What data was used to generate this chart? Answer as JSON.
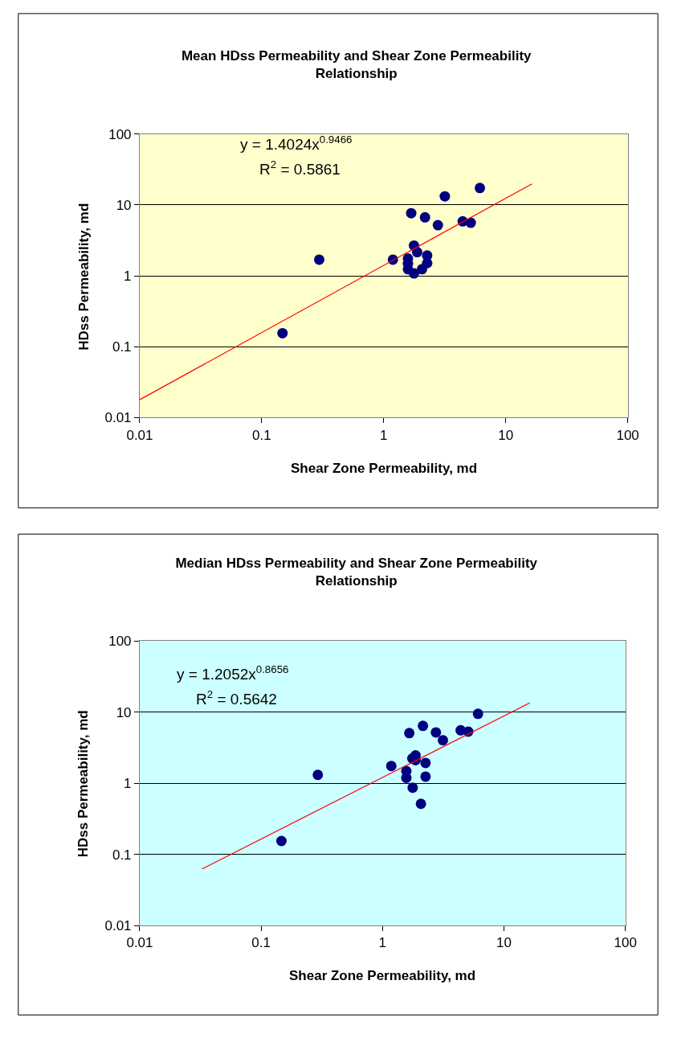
{
  "chart_data": [
    {
      "type": "scatter",
      "title": "Mean HDss Permeability and Shear Zone Permeability Relationship",
      "xlabel": "Shear Zone Permeability, md",
      "ylabel": "HDss Permeability, md",
      "log": "xy",
      "xlim": [
        0.01,
        100
      ],
      "ylim": [
        0.01,
        100
      ],
      "xticks": [
        0.01,
        0.1,
        1,
        10,
        100
      ],
      "yticks": [
        0.01,
        0.1,
        1,
        10,
        100
      ],
      "grid": "y",
      "marker": "circle",
      "annotations": [
        "y = 1.4024x$^{0.9466}$",
        "R$^{2}$ = 0.5861"
      ],
      "series": [
        {
          "color": "#000080",
          "x": [
            0.148,
            0.296,
            1.19,
            1.58,
            1.58,
            1.58,
            1.77,
            2.06,
            2.27,
            2.27,
            1.88,
            1.77,
            1.68,
            2.18,
            2.78,
            3.17,
            4.44,
            5.17,
            6.14
          ],
          "values": [
            0.155,
            1.69,
            1.69,
            1.75,
            1.48,
            1.24,
            1.08,
            1.24,
            1.51,
            1.93,
            2.16,
            2.67,
            7.64,
            6.68,
            5.18,
            13.2,
            5.85,
            5.6,
            17.3
          ]
        },
        {
          "type": "line",
          "marker": "none",
          "color": "#ff0000",
          "x": [
            0.01,
            16.4
          ],
          "values": [
            0.0179,
            19.8
          ]
        }
      ]
    },
    {
      "type": "scatter",
      "title": "Median HDss Permeability and Shear Zone Permeability Relationship",
      "xlabel": "Shear Zone Permeability, md",
      "ylabel": "HDss Permeability, md",
      "log": "xy",
      "xlim": [
        0.01,
        100
      ],
      "ylim": [
        0.01,
        100
      ],
      "xticks": [
        0.01,
        0.1,
        1,
        10,
        100
      ],
      "yticks": [
        0.01,
        0.1,
        1,
        10,
        100
      ],
      "grid": "y",
      "marker": "circle",
      "annotations": [
        "y = 1.2052x$^{0.8656}$",
        "R$^{2}$ = 0.5642"
      ],
      "series": [
        {
          "color": "#000080",
          "x": [
            0.147,
            0.293,
            1.18,
            1.57,
            1.57,
            1.77,
            2.07,
            2.26,
            2.26,
            1.76,
            1.87,
            1.87,
            1.66,
            2.15,
            2.75,
            3.14,
            4.4,
            5.08,
            6.11
          ],
          "values": [
            0.154,
            1.31,
            1.75,
            1.48,
            1.19,
            0.865,
            0.513,
            1.24,
            1.93,
            2.23,
            2.46,
            2.11,
            5.07,
            6.41,
            5.19,
            4.02,
            5.55,
            5.31,
            9.46
          ]
        },
        {
          "type": "line",
          "marker": "none",
          "color": "#ff0000",
          "x": [
            0.0327,
            16.3
          ],
          "values": [
            0.0624,
            13.5
          ]
        }
      ]
    }
  ]
}
